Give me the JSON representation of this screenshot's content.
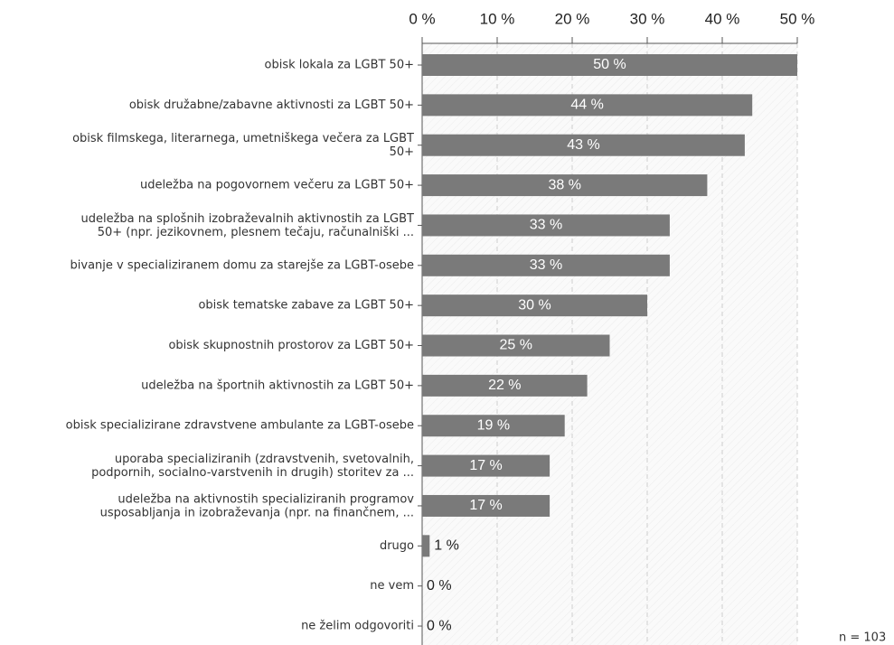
{
  "chart_data": {
    "type": "bar",
    "orientation": "horizontal",
    "categories": [
      "obisk lokala za LGBT 50+",
      "obisk družabne/zabavne aktivnosti za LGBT 50+",
      "obisk filmskega, literarnega, umetniškega večera za LGBT\n50+",
      "udeležba na pogovornem večeru za LGBT 50+",
      "udeležba na splošnih izobraževalnih aktivnostih za LGBT\n50+ (npr. jezikovnem, plesnem tečaju, računalniški ...",
      "bivanje v specializiranem domu za starejše za LGBT-osebe",
      "obisk tematske zabave za LGBT 50+",
      "obisk skupnostnih prostorov za LGBT 50+",
      "udeležba na športnih aktivnostih za LGBT 50+",
      "obisk specializirane zdravstvene ambulante za LGBT-osebe",
      "uporaba  specializiranih (zdravstvenih, svetovalnih,\npodpornih, socialno-varstvenih in drugih) storitev za ...",
      "udeležba na aktivnostih specializiranih programov\nusposabljanja in izobraževanja (npr. na finančnem, ...",
      "drugo",
      "ne vem",
      "ne želim odgovoriti"
    ],
    "values": [
      50,
      44,
      43,
      38,
      33,
      33,
      30,
      25,
      22,
      19,
      17,
      17,
      1,
      0,
      0
    ],
    "value_labels": [
      "50 %",
      "44 %",
      "43 %",
      "38 %",
      "33 %",
      "33 %",
      "30 %",
      "25 %",
      "22 %",
      "19 %",
      "17 %",
      "17 %",
      "1 %",
      "0 %",
      "0 %"
    ],
    "color": "#7a7a7a",
    "xlim": [
      0,
      50
    ],
    "xticks": [
      {
        "value": 0,
        "label": "0 %"
      },
      {
        "value": 10,
        "label": "10 %"
      },
      {
        "value": 20,
        "label": "20 %"
      },
      {
        "value": 30,
        "label": "30 %"
      },
      {
        "value": 40,
        "label": "40 %"
      },
      {
        "value": 50,
        "label": "50 %"
      }
    ],
    "grid": true,
    "annotation": "n = 103"
  }
}
